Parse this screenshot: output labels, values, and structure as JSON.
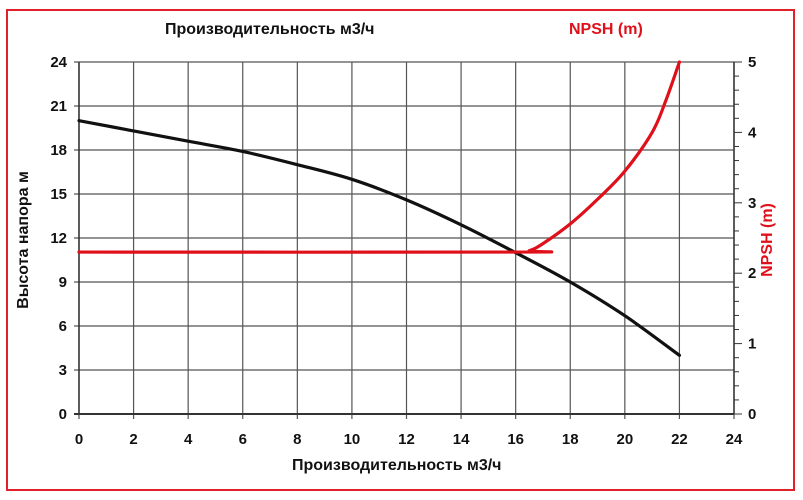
{
  "chart_data": {
    "type": "line",
    "title": "Производительность м3/ч",
    "secondary_title": "NPSH (m)",
    "xlabel": "Производительность м3/ч",
    "ylabel": "Высота напора м",
    "y2label": "NPSH (m)",
    "xlim": [
      0,
      24
    ],
    "ylim": [
      0,
      24
    ],
    "y2lim": [
      0,
      5
    ],
    "x_ticks": [
      0,
      2,
      4,
      6,
      8,
      10,
      12,
      14,
      16,
      18,
      20,
      22,
      24
    ],
    "y_ticks": [
      0,
      3,
      6,
      9,
      12,
      15,
      18,
      21,
      24
    ],
    "y2_ticks": [
      0,
      1,
      2,
      3,
      4,
      5
    ],
    "grid": true,
    "series": [
      {
        "name": "Высота напора",
        "axis": "left",
        "color": "#111111",
        "x": [
          0,
          2,
          4,
          6,
          8,
          10,
          12,
          14,
          16,
          18,
          20,
          22
        ],
        "values": [
          20.0,
          19.3,
          18.6,
          17.9,
          17.0,
          16.0,
          14.6,
          12.9,
          11.0,
          9.0,
          6.7,
          4.0
        ]
      },
      {
        "name": "NPSH",
        "axis": "right",
        "color": "#e0101a",
        "x": [
          0,
          16,
          16.5,
          17,
          18,
          19,
          20,
          21,
          21.5,
          22
        ],
        "values": [
          2.3,
          2.3,
          2.32,
          2.42,
          2.7,
          3.05,
          3.45,
          4.0,
          4.45,
          5.0
        ]
      }
    ]
  },
  "labels": {
    "top_title": "Производительность м3/ч",
    "npsh_title": "NPSH (m)",
    "x_axis": "Производительность м3/ч",
    "y_axis": "Высота напора м",
    "y2_axis": "NPSH (m)"
  },
  "colors": {
    "frame": "#e0202a",
    "npsh": "#e0101a",
    "head": "#111111",
    "grid": "#555555"
  }
}
